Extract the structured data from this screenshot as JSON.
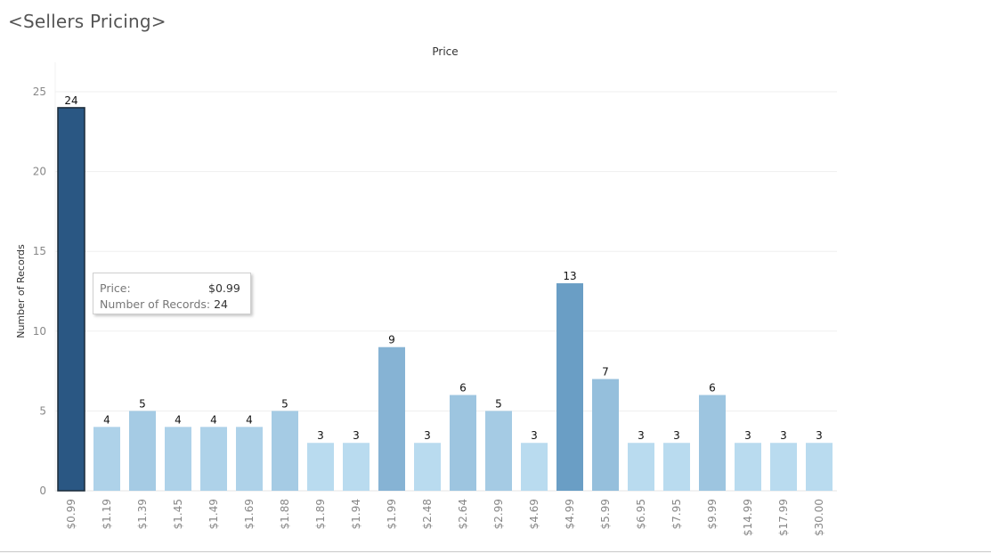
{
  "sheet": {
    "title": "<Sellers Pricing>"
  },
  "tooltip": {
    "price_label": "Price:",
    "price_value": "$0.99",
    "records_label": "Number of Records:",
    "records_value": "24"
  },
  "colors": {
    "selected_bar": "#2a5783",
    "selected_border": "#1b2a38",
    "scale_low": "#b9dbef",
    "scale_high": "#6a9ec5",
    "gridline": "#efefef",
    "axis_text": "#888888",
    "label_text": "#111111"
  },
  "chart_data": {
    "type": "bar",
    "title": "Price",
    "xlabel": "",
    "ylabel": "Number of Records",
    "ylim": [
      0,
      25
    ],
    "yticks": [
      0,
      5,
      10,
      15,
      20,
      25
    ],
    "grid": true,
    "categories": [
      "$0.99",
      "$1.19",
      "$1.39",
      "$1.45",
      "$1.49",
      "$1.69",
      "$1.88",
      "$1.89",
      "$1.94",
      "$1.99",
      "$2.48",
      "$2.64",
      "$2.99",
      "$4.69",
      "$4.99",
      "$5.99",
      "$6.95",
      "$7.95",
      "$9.99",
      "$14.99",
      "$17.99",
      "$30.00"
    ],
    "values": [
      24,
      4,
      5,
      4,
      4,
      4,
      5,
      3,
      3,
      9,
      3,
      6,
      5,
      3,
      13,
      7,
      3,
      3,
      6,
      3,
      3,
      3
    ],
    "selected_category": "$0.99"
  }
}
